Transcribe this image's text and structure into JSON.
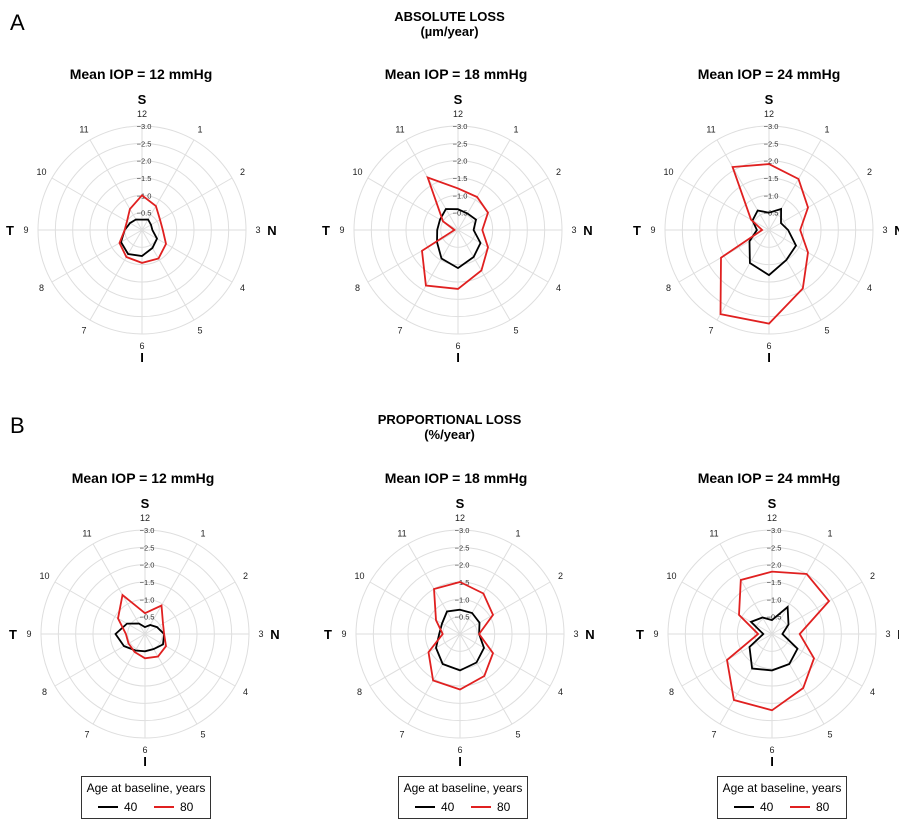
{
  "panel_a": {
    "letter": "A",
    "title": "ABSOLUTE LOSS",
    "subtitle": "(µm/year)"
  },
  "panel_b": {
    "letter": "B",
    "title": "PROPORTIONAL LOSS",
    "subtitle": "(%/year)"
  },
  "legend": {
    "title": "Age at baseline, years",
    "entries": [
      {
        "label": "40",
        "color": "#000000"
      },
      {
        "label": "80",
        "color": "#e02020"
      }
    ]
  },
  "chart_data": [
    {
      "type": "radar",
      "title": "Mean IOP = 12 mmHg",
      "panel": "A",
      "clock_labels": [
        "12",
        "1",
        "2",
        "3",
        "4",
        "5",
        "6",
        "7",
        "8",
        "9",
        "10",
        "11"
      ],
      "direction_labels": {
        "top": "S",
        "right": "N",
        "bottom": "I",
        "left": "T"
      },
      "radial_ticks": [
        "−0.5",
        "−1.0",
        "−1.5",
        "−2.0",
        "−2.5",
        "−3.0"
      ],
      "rlim": [
        0,
        -3.0
      ],
      "series": [
        {
          "name": "40",
          "color": "#000000",
          "values": [
            -0.3,
            -0.35,
            -0.3,
            -0.3,
            -0.5,
            -0.6,
            -0.75,
            -0.8,
            -0.7,
            -0.5,
            -0.4,
            -0.35
          ]
        },
        {
          "name": "80",
          "color": "#e02020",
          "values": [
            -1.0,
            -0.8,
            -0.6,
            -0.6,
            -0.8,
            -0.95,
            -0.95,
            -0.9,
            -0.75,
            -0.5,
            -0.5,
            -0.7
          ]
        }
      ]
    },
    {
      "type": "radar",
      "title": "Mean IOP = 18 mmHg",
      "panel": "A",
      "clock_labels": [
        "12",
        "1",
        "2",
        "3",
        "4",
        "5",
        "6",
        "7",
        "8",
        "9",
        "10",
        "11"
      ],
      "direction_labels": {
        "top": "S",
        "right": "N",
        "bottom": "I",
        "left": "T"
      },
      "radial_ticks": [
        "−0.5",
        "−1.0",
        "−1.5",
        "−2.0",
        "−2.5",
        "−3.0"
      ],
      "rlim": [
        0,
        -3.0
      ],
      "series": [
        {
          "name": "40",
          "color": "#000000",
          "values": [
            -0.6,
            -0.55,
            -0.6,
            -0.45,
            -0.75,
            -0.9,
            -1.1,
            -0.95,
            -0.7,
            -0.6,
            -0.6,
            -0.7
          ]
        },
        {
          "name": "80",
          "color": "#e02020",
          "values": [
            -1.2,
            -1.1,
            -1.0,
            -0.7,
            -1.0,
            -1.35,
            -1.7,
            -1.85,
            -1.2,
            -0.1,
            -0.5,
            -1.75
          ]
        }
      ]
    },
    {
      "type": "radar",
      "title": "Mean IOP = 24 mmHg",
      "panel": "A",
      "clock_labels": [
        "12",
        "1",
        "2",
        "3",
        "4",
        "5",
        "6",
        "7",
        "8",
        "9",
        "10",
        "11"
      ],
      "direction_labels": {
        "top": "S",
        "right": "N",
        "bottom": "I",
        "left": "T"
      },
      "radial_ticks": [
        "−0.5",
        "−1.0",
        "−1.5",
        "−2.0",
        "−2.5",
        "−3.0"
      ],
      "rlim": [
        0,
        -3.0
      ],
      "series": [
        {
          "name": "40",
          "color": "#000000",
          "values": [
            -0.5,
            -0.7,
            -0.4,
            -0.55,
            -0.9,
            -1.0,
            -1.3,
            -1.1,
            -0.65,
            -0.35,
            -0.55,
            -0.65
          ]
        },
        {
          "name": "80",
          "color": "#e02020",
          "values": [
            -1.9,
            -1.7,
            -1.3,
            -0.9,
            -1.3,
            -1.95,
            -2.7,
            -2.8,
            -1.6,
            -0.2,
            -0.6,
            -2.1
          ]
        }
      ]
    },
    {
      "type": "radar",
      "title": "Mean IOP = 12 mmHg",
      "panel": "B",
      "clock_labels": [
        "12",
        "1",
        "2",
        "3",
        "4",
        "5",
        "6",
        "7",
        "8",
        "9",
        "10",
        "11"
      ],
      "direction_labels": {
        "top": "S",
        "right": "N",
        "bottom": "I",
        "left": "T"
      },
      "radial_ticks": [
        "−0.5",
        "−1.0",
        "−1.5",
        "−2.0",
        "−2.5",
        "−3.0"
      ],
      "rlim": [
        0,
        -3.0
      ],
      "series": [
        {
          "name": "40",
          "color": "#000000",
          "values": [
            -0.2,
            -0.3,
            -0.4,
            -0.55,
            -0.6,
            -0.5,
            -0.5,
            -0.55,
            -0.7,
            -0.85,
            -0.6,
            -0.35
          ]
        },
        {
          "name": "80",
          "color": "#e02020",
          "values": [
            -0.6,
            -0.95,
            -0.6,
            -0.55,
            -0.7,
            -0.75,
            -0.7,
            -0.6,
            -0.55,
            -0.55,
            -0.9,
            -1.3
          ]
        }
      ]
    },
    {
      "type": "radar",
      "title": "Mean IOP = 18 mmHg",
      "panel": "B",
      "clock_labels": [
        "12",
        "1",
        "2",
        "3",
        "4",
        "5",
        "6",
        "7",
        "8",
        "9",
        "10",
        "11"
      ],
      "direction_labels": {
        "top": "S",
        "right": "N",
        "bottom": "I",
        "left": "T"
      },
      "radial_ticks": [
        "−0.5",
        "−1.0",
        "−1.5",
        "−2.0",
        "−2.5",
        "−3.0"
      ],
      "rlim": [
        0,
        -3.0
      ],
      "series": [
        {
          "name": "40",
          "color": "#000000",
          "values": [
            -0.7,
            -0.7,
            -0.65,
            -0.55,
            -0.8,
            -0.95,
            -1.05,
            -1.0,
            -0.8,
            -0.6,
            -0.6,
            -0.75
          ]
        },
        {
          "name": "80",
          "color": "#e02020",
          "values": [
            -1.5,
            -1.35,
            -1.1,
            -0.55,
            -1.1,
            -1.4,
            -1.6,
            -1.55,
            -1.05,
            -0.5,
            -0.8,
            -1.5
          ]
        }
      ]
    },
    {
      "type": "radar",
      "title": "Mean IOP = 24 mmHg",
      "panel": "B",
      "clock_labels": [
        "12",
        "1",
        "2",
        "3",
        "4",
        "5",
        "6",
        "7",
        "8",
        "9",
        "10",
        "11"
      ],
      "direction_labels": {
        "top": "S",
        "right": "N",
        "bottom": "I",
        "left": "T"
      },
      "radial_ticks": [
        "−0.5",
        "−1.0",
        "−1.5",
        "−2.0",
        "−2.5",
        "−3.0"
      ],
      "rlim": [
        0,
        -3.0
      ],
      "series": [
        {
          "name": "40",
          "color": "#000000",
          "values": [
            -0.4,
            -0.9,
            -0.55,
            -0.3,
            -0.85,
            -1.0,
            -1.05,
            -1.15,
            -0.75,
            -0.25,
            -0.7,
            -0.55
          ]
        },
        {
          "name": "80",
          "color": "#e02020",
          "values": [
            -1.8,
            -2.0,
            -1.9,
            -0.8,
            -1.4,
            -1.8,
            -2.2,
            -2.2,
            -1.5,
            -0.4,
            -1.1,
            -1.8
          ]
        }
      ]
    }
  ]
}
